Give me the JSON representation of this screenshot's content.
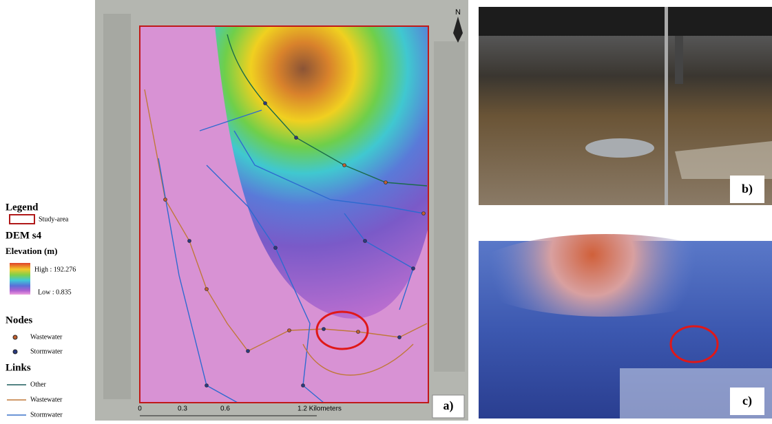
{
  "legend": {
    "title": "Legend",
    "study_area": "Study-area",
    "dem_title": "DEM s4",
    "elevation_title": "Elevation (m)",
    "high": "High : 192.276",
    "low": "Low : 0.835",
    "nodes_title": "Nodes",
    "nodes": [
      "Wastewater",
      "Stormwater"
    ],
    "links_title": "Links",
    "links": [
      "Other",
      "Wastewater",
      "Stormwater"
    ]
  },
  "map": {
    "north": "N",
    "scale_labels": [
      "0",
      "0.3",
      "0.6",
      "1.2 Kilometers"
    ],
    "panel_label": "a)"
  },
  "photo": {
    "panel_label": "b)"
  },
  "render": {
    "panel_label": "c)"
  }
}
